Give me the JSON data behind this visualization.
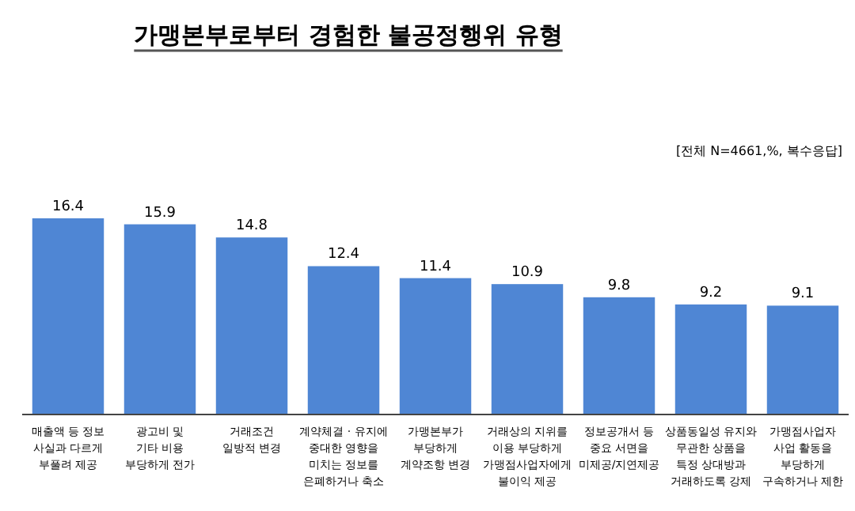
{
  "chart_data": {
    "type": "bar",
    "title": "가맹본부로부터 경험한 불공정행위 유형",
    "annotations": [
      "[전체 N=4661,%, 복수응답]"
    ],
    "categories": [
      "매출액 등 정보\n사실과 다르게\n부풀려 제공",
      "광고비 및\n기타 비용\n부당하게 전가",
      "거래조건\n일방적 변경",
      "계약체결 · 유지에\n중대한 영향을\n미치는 정보를\n은폐하거나 축소",
      "가맹본부가\n부당하게\n계약조항 변경",
      "거래상의 지위를\n이용 부당하게\n가맹점사업자에게\n불이익 제공",
      "정보공개서 등\n중요 서면을\n미제공/지연제공",
      "상품동일성 유지와\n무관한 상품을\n특정 상대방과\n거래하도록 강제",
      "가맹점사업자\n사업 활동을\n부당하게\n구속하거나 제한"
    ],
    "values": [
      16.4,
      15.9,
      14.8,
      12.4,
      11.4,
      10.9,
      9.8,
      9.2,
      9.1
    ],
    "color": "#4f86d4",
    "data_labels": true
  }
}
